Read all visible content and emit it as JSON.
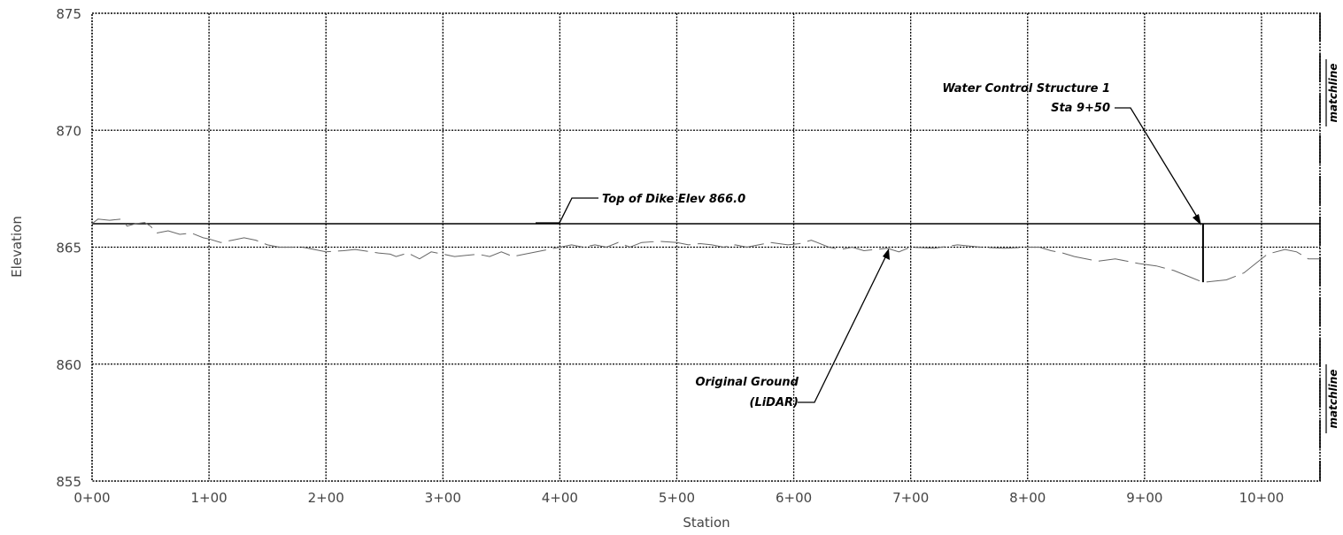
{
  "chart_data": {
    "type": "line",
    "xlabel": "Station",
    "ylabel": "Elevation",
    "xlim": [
      0,
      1050
    ],
    "ylim": [
      855,
      875
    ],
    "x_ticks": [
      {
        "value": 0,
        "label": "0+00"
      },
      {
        "value": 100,
        "label": "1+00"
      },
      {
        "value": 200,
        "label": "2+00"
      },
      {
        "value": 300,
        "label": "3+00"
      },
      {
        "value": 400,
        "label": "4+00"
      },
      {
        "value": 500,
        "label": "5+00"
      },
      {
        "value": 600,
        "label": "6+00"
      },
      {
        "value": 700,
        "label": "7+00"
      },
      {
        "value": 800,
        "label": "8+00"
      },
      {
        "value": 900,
        "label": "9+00"
      },
      {
        "value": 1000,
        "label": "10+00"
      }
    ],
    "y_ticks": [
      {
        "value": 855,
        "label": "855"
      },
      {
        "value": 860,
        "label": "860"
      },
      {
        "value": 865,
        "label": "865"
      },
      {
        "value": 870,
        "label": "870"
      },
      {
        "value": 875,
        "label": "875"
      }
    ],
    "grid": true,
    "series": [
      {
        "name": "Top of Dike Elev 866.0",
        "style": "solid",
        "color": "#000000",
        "points": [
          [
            0,
            866.0
          ],
          [
            1050,
            866.0
          ]
        ]
      },
      {
        "name": "Original Ground (LiDAR)",
        "style": "dashed",
        "color": "#666666",
        "points": [
          [
            0,
            866.0
          ],
          [
            5,
            866.2
          ],
          [
            15,
            866.15
          ],
          [
            25,
            866.2
          ],
          [
            30,
            865.9
          ],
          [
            37,
            866.0
          ],
          [
            45,
            866.05
          ],
          [
            50,
            865.9
          ],
          [
            55,
            865.6
          ],
          [
            65,
            865.7
          ],
          [
            75,
            865.55
          ],
          [
            85,
            865.6
          ],
          [
            95,
            865.4
          ],
          [
            100,
            865.35
          ],
          [
            110,
            865.2
          ],
          [
            120,
            865.3
          ],
          [
            130,
            865.4
          ],
          [
            140,
            865.3
          ],
          [
            150,
            865.1
          ],
          [
            160,
            865.0
          ],
          [
            170,
            865.0
          ],
          [
            180,
            865.0
          ],
          [
            190,
            864.9
          ],
          [
            200,
            864.8
          ],
          [
            215,
            864.85
          ],
          [
            225,
            864.9
          ],
          [
            245,
            864.75
          ],
          [
            255,
            864.7
          ],
          [
            260,
            864.6
          ],
          [
            270,
            864.75
          ],
          [
            280,
            864.5
          ],
          [
            290,
            864.8
          ],
          [
            300,
            864.7
          ],
          [
            310,
            864.6
          ],
          [
            320,
            864.65
          ],
          [
            330,
            864.7
          ],
          [
            340,
            864.6
          ],
          [
            350,
            864.8
          ],
          [
            360,
            864.6
          ],
          [
            370,
            864.7
          ],
          [
            390,
            864.9
          ],
          [
            400,
            865.0
          ],
          [
            410,
            865.1
          ],
          [
            420,
            865.0
          ],
          [
            430,
            865.1
          ],
          [
            440,
            865.0
          ],
          [
            450,
            865.2
          ],
          [
            460,
            865.0
          ],
          [
            470,
            865.2
          ],
          [
            485,
            865.25
          ],
          [
            500,
            865.2
          ],
          [
            510,
            865.1
          ],
          [
            520,
            865.15
          ],
          [
            530,
            865.1
          ],
          [
            540,
            865.0
          ],
          [
            550,
            865.1
          ],
          [
            560,
            865.0
          ],
          [
            570,
            865.1
          ],
          [
            580,
            865.2
          ],
          [
            595,
            865.1
          ],
          [
            605,
            865.15
          ],
          [
            615,
            865.3
          ],
          [
            620,
            865.2
          ],
          [
            630,
            865.0
          ],
          [
            640,
            864.9
          ],
          [
            650,
            865.0
          ],
          [
            660,
            864.85
          ],
          [
            670,
            864.9
          ],
          [
            680,
            864.95
          ],
          [
            690,
            864.8
          ],
          [
            700,
            865.0
          ],
          [
            720,
            864.95
          ],
          [
            740,
            865.1
          ],
          [
            760,
            865.0
          ],
          [
            780,
            864.95
          ],
          [
            800,
            865.0
          ],
          [
            810,
            865.0
          ],
          [
            820,
            864.85
          ],
          [
            830,
            864.75
          ],
          [
            840,
            864.6
          ],
          [
            850,
            864.5
          ],
          [
            860,
            864.4
          ],
          [
            875,
            864.5
          ],
          [
            895,
            864.3
          ],
          [
            910,
            864.2
          ],
          [
            925,
            864.0
          ],
          [
            940,
            863.7
          ],
          [
            950,
            863.5
          ],
          [
            960,
            863.55
          ],
          [
            970,
            863.6
          ],
          [
            985,
            863.9
          ],
          [
            995,
            864.3
          ],
          [
            1005,
            864.7
          ],
          [
            1020,
            864.9
          ],
          [
            1030,
            864.8
          ],
          [
            1040,
            864.5
          ],
          [
            1050,
            864.5
          ]
        ]
      }
    ],
    "annotations": [
      {
        "text": "Top of Dike Elev 866.0"
      },
      {
        "text_lines": [
          "Water Control Structure 1",
          "Sta 9+50"
        ]
      },
      {
        "text_lines": [
          "Original Ground",
          "(LiDAR)"
        ]
      },
      {
        "text": "matchline"
      },
      {
        "text": "matchline"
      }
    ],
    "structure": {
      "station": 950,
      "top_elev": 866.0,
      "bottom_elev": 863.5
    }
  }
}
